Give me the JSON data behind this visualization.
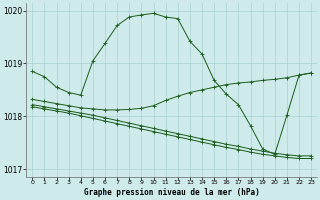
{
  "title": "Graphe pression niveau de la mer (hPa)",
  "background_color": "#ceeaea",
  "grid_color": "#aacfcf",
  "line_color": "#1a5c1a",
  "xlim": [
    -0.5,
    23.5
  ],
  "ylim": [
    1016.85,
    1020.15
  ],
  "yticks": [
    1017,
    1018,
    1019,
    1020
  ],
  "xticks": [
    0,
    1,
    2,
    3,
    4,
    5,
    6,
    7,
    8,
    9,
    10,
    11,
    12,
    13,
    14,
    15,
    16,
    17,
    18,
    19,
    20,
    21,
    22,
    23
  ],
  "series": [
    {
      "x": [
        0,
        1,
        2,
        3,
        4,
        5,
        6,
        7,
        8,
        9,
        10,
        11,
        12,
        13,
        14,
        15,
        16,
        17,
        18,
        19,
        20,
        21,
        22,
        23
      ],
      "y": [
        1018.85,
        1018.75,
        1018.55,
        1018.45,
        1018.4,
        1019.05,
        1019.38,
        1019.72,
        1019.88,
        1019.92,
        1019.95,
        1019.88,
        1019.85,
        1019.42,
        1019.18,
        1018.68,
        1018.42,
        1018.22,
        1017.82,
        1017.38,
        1017.28,
        1018.02,
        1018.78,
        1018.82
      ]
    },
    {
      "x": [
        0,
        1,
        2,
        3,
        4,
        5,
        6,
        7,
        8,
        9,
        10,
        11,
        12,
        13,
        14,
        15,
        16,
        17,
        18,
        19,
        20,
        21,
        22,
        23
      ],
      "y": [
        1018.32,
        1018.28,
        1018.24,
        1018.2,
        1018.16,
        1018.14,
        1018.12,
        1018.12,
        1018.13,
        1018.15,
        1018.2,
        1018.3,
        1018.38,
        1018.45,
        1018.5,
        1018.55,
        1018.6,
        1018.63,
        1018.65,
        1018.68,
        1018.7,
        1018.73,
        1018.78,
        1018.82
      ]
    },
    {
      "x": [
        0,
        1,
        2,
        3,
        4,
        5,
        6,
        7,
        8,
        9,
        10,
        11,
        12,
        13,
        14,
        15,
        16,
        17,
        18,
        19,
        20,
        21,
        22,
        23
      ],
      "y": [
        1018.22,
        1018.18,
        1018.14,
        1018.1,
        1018.06,
        1018.02,
        1017.97,
        1017.92,
        1017.87,
        1017.82,
        1017.77,
        1017.72,
        1017.67,
        1017.62,
        1017.57,
        1017.52,
        1017.47,
        1017.43,
        1017.38,
        1017.34,
        1017.3,
        1017.27,
        1017.25,
        1017.25
      ]
    },
    {
      "x": [
        0,
        1,
        2,
        3,
        4,
        5,
        6,
        7,
        8,
        9,
        10,
        11,
        12,
        13,
        14,
        15,
        16,
        17,
        18,
        19,
        20,
        21,
        22,
        23
      ],
      "y": [
        1018.18,
        1018.14,
        1018.1,
        1018.06,
        1018.01,
        1017.96,
        1017.91,
        1017.86,
        1017.81,
        1017.76,
        1017.71,
        1017.66,
        1017.61,
        1017.56,
        1017.51,
        1017.46,
        1017.41,
        1017.37,
        1017.32,
        1017.28,
        1017.25,
        1017.22,
        1017.2,
        1017.2
      ]
    }
  ]
}
